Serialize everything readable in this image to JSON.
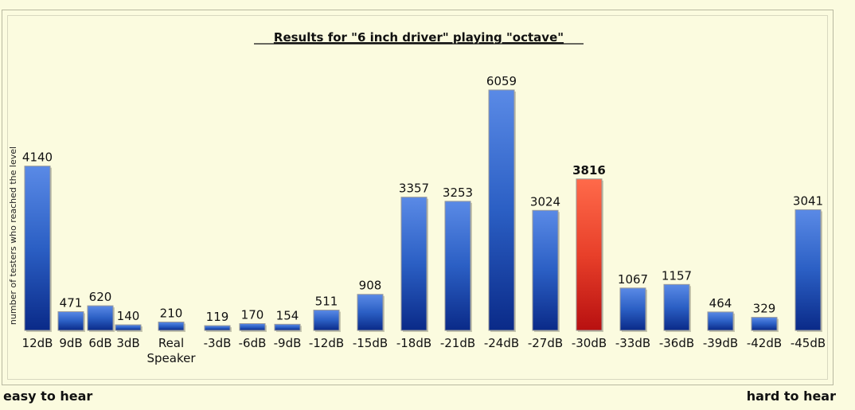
{
  "chart_data": {
    "type": "bar",
    "title": "Results for \"6 inch driver\" playing \"octave\"",
    "ylabel": "number of testers who reached the level",
    "xlabel": "",
    "categories": [
      "12dB",
      "9dB",
      "6dB",
      "3dB",
      "Real Speaker",
      "-3dB",
      "-6dB",
      "-9dB",
      "-12dB",
      "-15dB",
      "-18dB",
      "-21dB",
      "-24dB",
      "-27dB",
      "-30dB",
      "-33dB",
      "-36dB",
      "-39dB",
      "-42dB",
      "-45dB"
    ],
    "values": [
      4140,
      471,
      620,
      140,
      210,
      119,
      170,
      154,
      511,
      908,
      3357,
      3253,
      6059,
      3024,
      3816,
      1067,
      1157,
      464,
      329,
      3041
    ],
    "highlight_index": 14,
    "ylim": [
      0,
      6059
    ],
    "grid": false,
    "colors": {
      "bar": "#2b5fc4",
      "bar_light": "#5a8ae6",
      "bar_dark": "#0a2a88",
      "highlight": "#e8402a",
      "highlight_light": "#ff6a4a",
      "highlight_dark": "#b81010",
      "background": "#fbfbdf"
    }
  },
  "footer": {
    "left": "easy to hear",
    "right": "hard to hear"
  }
}
